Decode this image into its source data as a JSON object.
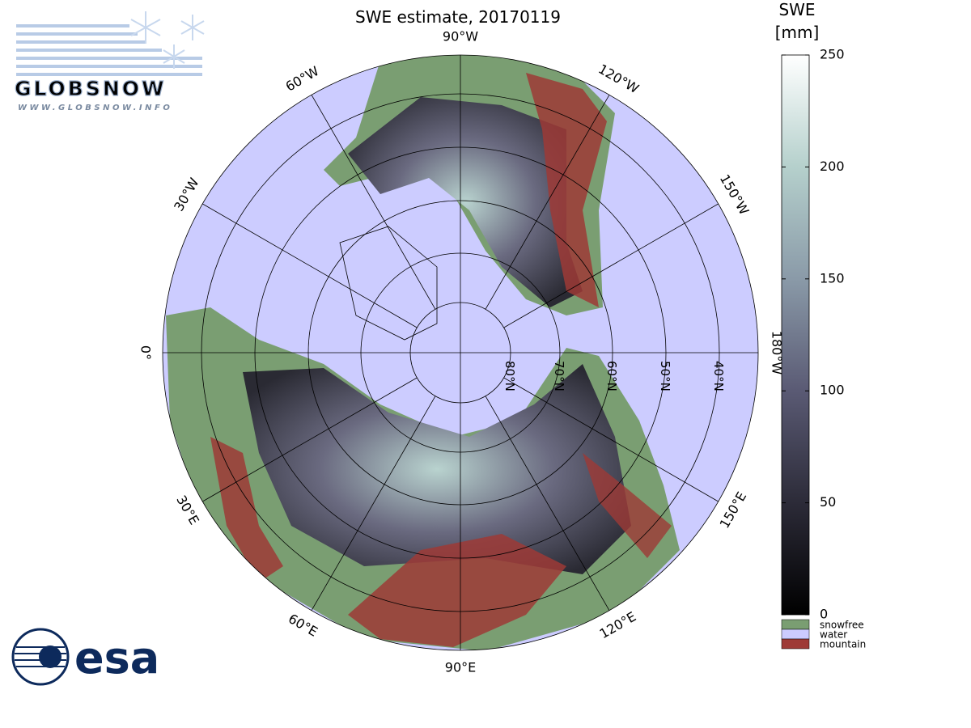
{
  "title": "SWE estimate, 20170119",
  "logos": {
    "globsnow": "GLOBSNOW",
    "globsnow_url": "WWW.GLOBSNOW.INFO",
    "esa": "esa"
  },
  "map": {
    "longitude_labels": [
      "0°",
      "30°E",
      "60°E",
      "90°E",
      "120°E",
      "150°E",
      "180°W",
      "150°W",
      "120°W",
      "90°W",
      "60°W",
      "30°W"
    ],
    "latitude_labels": [
      "80°N",
      "70°N",
      "60°N",
      "50°N",
      "40°N"
    ]
  },
  "colorbar": {
    "title": [
      "SWE",
      "[mm]"
    ],
    "lim": [
      0,
      250
    ],
    "ticks": [
      0,
      50,
      100,
      150,
      200,
      250
    ]
  },
  "legend": [
    {
      "label": "snowfree",
      "color": "#7a9e72"
    },
    {
      "label": "water",
      "color": "#ccccff"
    },
    {
      "label": "mountain",
      "color": "#9e3a36"
    }
  ]
}
